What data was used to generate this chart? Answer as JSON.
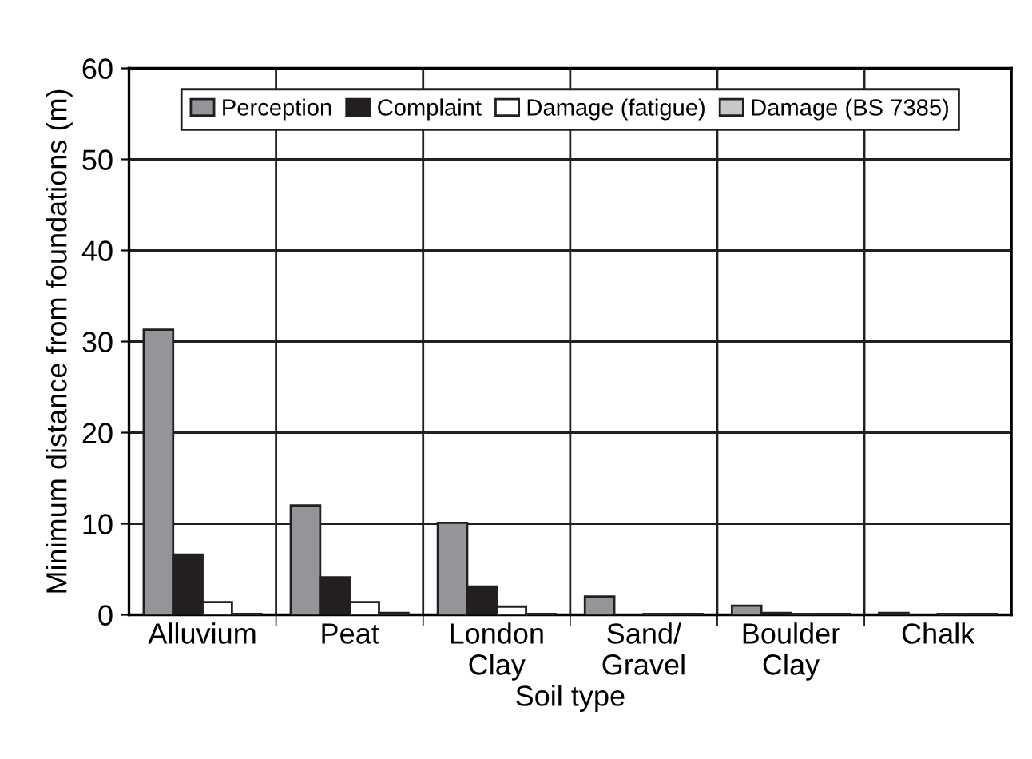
{
  "chart_data": {
    "type": "bar",
    "xlabel": "Soil type",
    "ylabel": "Minimum distance from foundations (m)",
    "categories": [
      "Alluvium",
      "Peat",
      "London\nClay",
      "Sand/\nGravel",
      "Boulder\nClay",
      "Chalk"
    ],
    "series": [
      {
        "name": "Perception",
        "color": "#939598",
        "values": [
          31.3,
          12,
          10.1,
          2,
          1,
          0.2
        ]
      },
      {
        "name": "Complaint",
        "color": "#231f20",
        "values": [
          6.6,
          4.1,
          3.1,
          null,
          0.2,
          null
        ]
      },
      {
        "name": "Damage (fatigue)",
        "color": "#ffffff",
        "values": [
          1.4,
          1.4,
          0.9,
          0.1,
          0.1,
          0.1
        ]
      },
      {
        "name": "Damage (BS 7385)",
        "color": "#c7c8ca",
        "values": [
          0.1,
          0.2,
          0.1,
          0.1,
          0.1,
          0.1
        ]
      }
    ],
    "ylim": [
      0,
      60
    ],
    "yticks": [
      0,
      10,
      20,
      30,
      40,
      50,
      60
    ],
    "grid": true,
    "legend": "top"
  }
}
